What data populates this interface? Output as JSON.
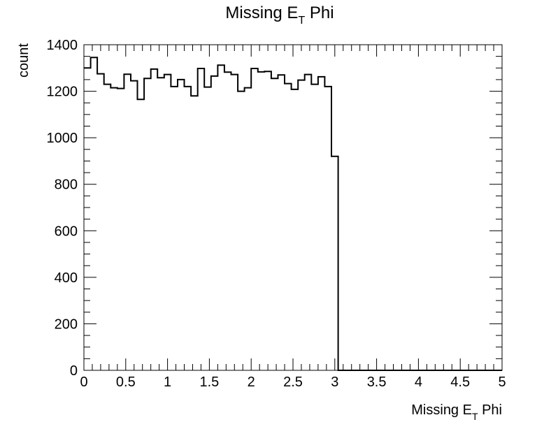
{
  "chart_data": {
    "type": "bar",
    "style": "step-histogram",
    "title": "Missing E",
    "title_subscript": "T",
    "title_suffix": " Phi",
    "xlabel": "Missing E",
    "xlabel_subscript": "T",
    "xlabel_suffix": " Phi",
    "ylabel": "count",
    "xlim": [
      0,
      5
    ],
    "ylim": [
      0,
      1400
    ],
    "x_ticks": [
      "0",
      "0.5",
      "1",
      "1.5",
      "2",
      "2.5",
      "3",
      "3.5",
      "4",
      "4.5",
      "5"
    ],
    "y_ticks": [
      "0",
      "200",
      "400",
      "600",
      "800",
      "1000",
      "1200",
      "1400"
    ],
    "grid": false,
    "line_color": "#000000",
    "bin_width": 0.08,
    "values": [
      1300,
      1345,
      1275,
      1230,
      1215,
      1212,
      1273,
      1245,
      1165,
      1255,
      1295,
      1258,
      1272,
      1220,
      1250,
      1220,
      1180,
      1298,
      1218,
      1265,
      1312,
      1282,
      1272,
      1200,
      1215,
      1298,
      1283,
      1285,
      1255,
      1270,
      1233,
      1208,
      1248,
      1272,
      1230,
      1262,
      1220,
      920,
      0,
      0,
      0,
      0,
      0,
      0,
      0,
      0,
      0,
      0,
      0,
      0,
      0,
      0,
      0,
      0,
      0,
      0,
      0,
      0,
      0,
      0,
      0,
      0,
      0
    ]
  }
}
